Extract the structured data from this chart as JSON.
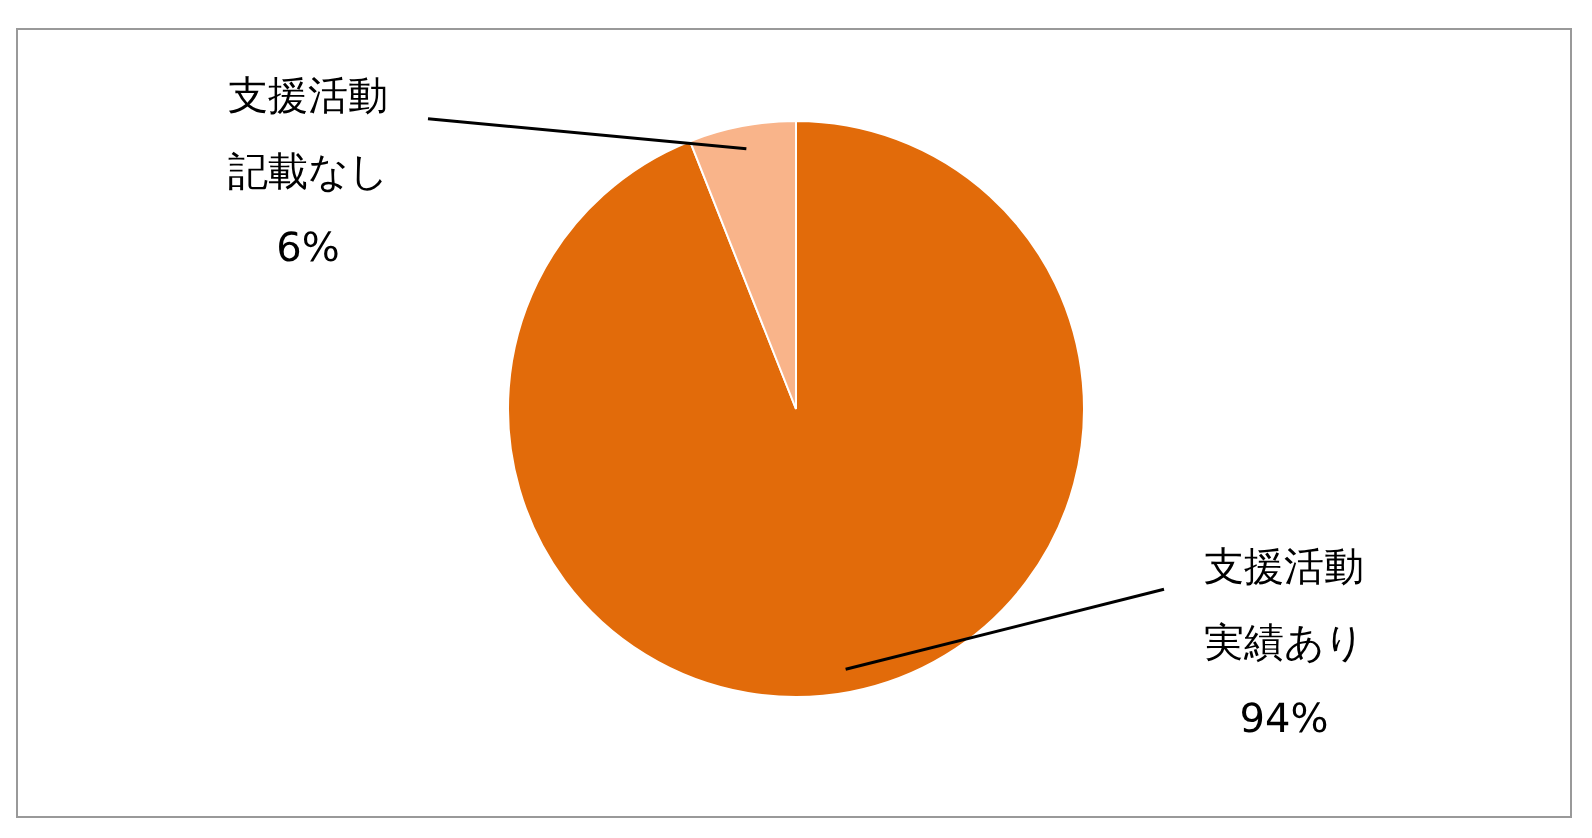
{
  "chart_data": {
    "type": "pie",
    "categories": [
      "支援活動実績あり",
      "支援活動記載なし"
    ],
    "values": [
      94,
      6
    ],
    "value_labels": [
      "94%",
      "6%"
    ],
    "colors": [
      "#e26b0a",
      "#f9b48a"
    ],
    "legend": false
  }
}
